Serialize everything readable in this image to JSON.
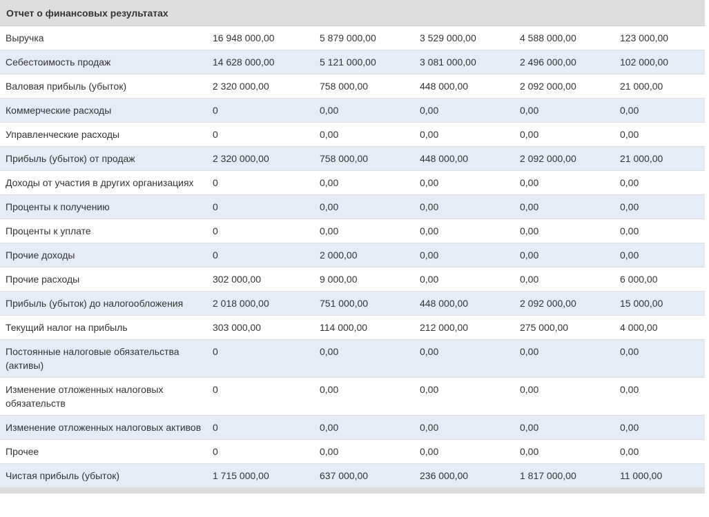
{
  "title": "Отчет о финансовых результатах",
  "rows": [
    {
      "label": "Выручка",
      "values": [
        "16 948 000,00",
        "5 879 000,00",
        "3 529 000,00",
        "4 588 000,00",
        "123 000,00"
      ]
    },
    {
      "label": "Себестоимость продаж",
      "values": [
        "14 628 000,00",
        "5 121 000,00",
        "3 081 000,00",
        "2 496 000,00",
        "102 000,00"
      ]
    },
    {
      "label": "Валовая прибыль (убыток)",
      "values": [
        "2 320 000,00",
        "758 000,00",
        "448 000,00",
        "2 092 000,00",
        "21 000,00"
      ]
    },
    {
      "label": "Коммерческие расходы",
      "values": [
        "0",
        "0,00",
        "0,00",
        "0,00",
        "0,00"
      ]
    },
    {
      "label": "Управленческие расходы",
      "values": [
        "0",
        "0,00",
        "0,00",
        "0,00",
        "0,00"
      ]
    },
    {
      "label": "Прибыль (убыток) от продаж",
      "values": [
        "2 320 000,00",
        "758 000,00",
        "448 000,00",
        "2 092 000,00",
        "21 000,00"
      ]
    },
    {
      "label": "Доходы от участия в других организациях",
      "values": [
        "0",
        "0,00",
        "0,00",
        "0,00",
        "0,00"
      ]
    },
    {
      "label": "Проценты к получению",
      "values": [
        "0",
        "0,00",
        "0,00",
        "0,00",
        "0,00"
      ]
    },
    {
      "label": "Проценты к уплате",
      "values": [
        "0",
        "0,00",
        "0,00",
        "0,00",
        "0,00"
      ]
    },
    {
      "label": "Прочие доходы",
      "values": [
        "0",
        "2 000,00",
        "0,00",
        "0,00",
        "0,00"
      ]
    },
    {
      "label": "Прочие расходы",
      "values": [
        "302 000,00",
        "9 000,00",
        "0,00",
        "0,00",
        "6 000,00"
      ]
    },
    {
      "label": "Прибыль (убыток) до налогообложения",
      "values": [
        "2 018 000,00",
        "751 000,00",
        "448 000,00",
        "2 092 000,00",
        "15 000,00"
      ]
    },
    {
      "label": "Текущий налог на прибыль",
      "values": [
        "303 000,00",
        "114 000,00",
        "212 000,00",
        "275 000,00",
        "4 000,00"
      ]
    },
    {
      "label": "Постоянные налоговые обязательства (активы)",
      "values": [
        "0",
        "0,00",
        "0,00",
        "0,00",
        "0,00"
      ]
    },
    {
      "label": "Изменение отложенных налоговых обязательств",
      "values": [
        "0",
        "0,00",
        "0,00",
        "0,00",
        "0,00"
      ]
    },
    {
      "label": "Изменение отложенных налоговых активов",
      "values": [
        "0",
        "0,00",
        "0,00",
        "0,00",
        "0,00"
      ]
    },
    {
      "label": "Прочее",
      "values": [
        "0",
        "0,00",
        "0,00",
        "0,00",
        "0,00"
      ]
    },
    {
      "label": "Чистая прибыль (убыток)",
      "values": [
        "1 715 000,00",
        "637 000,00",
        "236 000,00",
        "1 817 000,00",
        "11 000,00"
      ]
    }
  ]
}
